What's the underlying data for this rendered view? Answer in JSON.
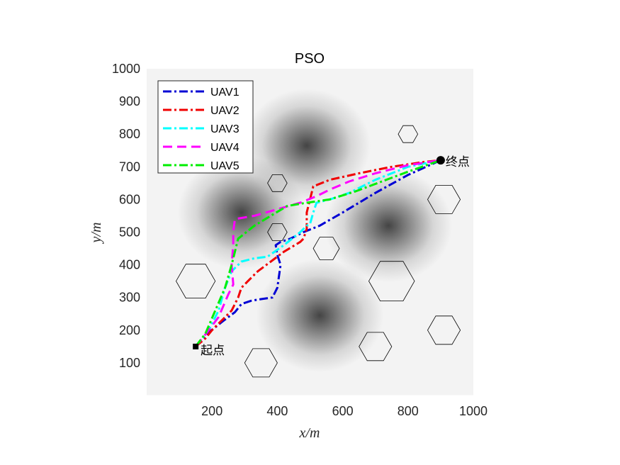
{
  "chart_data": {
    "type": "line",
    "title": "PSO",
    "xlabel": "x/m",
    "ylabel": "y/m",
    "xlim": [
      0,
      1000
    ],
    "ylim": [
      0,
      1000
    ],
    "x_ticks": [
      200,
      400,
      600,
      800,
      1000
    ],
    "y_ticks": [
      100,
      200,
      300,
      400,
      500,
      600,
      700,
      800,
      900,
      1000
    ],
    "grid": false,
    "legend_position": "top-left",
    "start": {
      "label": "起点",
      "x": 150,
      "y": 150
    },
    "end": {
      "label": "终点",
      "x": 900,
      "y": 720
    },
    "terrain_peaks": [
      {
        "x": 490,
        "y": 765
      },
      {
        "x": 530,
        "y": 245
      },
      {
        "x": 290,
        "y": 560
      },
      {
        "x": 740,
        "y": 520
      }
    ],
    "obstacles": [
      {
        "x": 800,
        "y": 800,
        "r": 30
      },
      {
        "x": 400,
        "y": 650,
        "r": 30
      },
      {
        "x": 910,
        "y": 600,
        "r": 50
      },
      {
        "x": 400,
        "y": 500,
        "r": 30
      },
      {
        "x": 550,
        "y": 450,
        "r": 40
      },
      {
        "x": 150,
        "y": 350,
        "r": 60
      },
      {
        "x": 750,
        "y": 350,
        "r": 70
      },
      {
        "x": 910,
        "y": 200,
        "r": 50
      },
      {
        "x": 700,
        "y": 150,
        "r": 50
      },
      {
        "x": 350,
        "y": 100,
        "r": 50
      }
    ],
    "series": [
      {
        "name": "UAV1",
        "color": "#0000d4",
        "dash": "dashdot",
        "x": [
          150,
          180,
          230,
          270,
          290,
          320,
          350,
          385,
          400,
          410,
          400,
          395,
          410,
          440,
          480,
          530,
          600,
          700,
          800,
          900
        ],
        "y": [
          150,
          185,
          225,
          255,
          280,
          290,
          295,
          300,
          330,
          400,
          430,
          460,
          470,
          480,
          500,
          520,
          560,
          620,
          675,
          720
        ]
      },
      {
        "name": "UAV2",
        "color": "#f00000",
        "dash": "dashdot",
        "x": [
          150,
          180,
          200,
          230,
          260,
          280,
          290,
          310,
          340,
          380,
          420,
          470,
          480,
          490,
          490,
          500,
          510,
          560,
          650,
          750,
          850,
          900
        ],
        "y": [
          150,
          175,
          200,
          230,
          260,
          300,
          330,
          350,
          380,
          410,
          440,
          470,
          480,
          510,
          560,
          600,
          640,
          660,
          680,
          700,
          715,
          720
        ]
      },
      {
        "name": "UAV3",
        "color": "#00ffff",
        "dash": "dashdot",
        "x": [
          150,
          190,
          220,
          240,
          260,
          290,
          330,
          370,
          420,
          470,
          490,
          500,
          510,
          520,
          560,
          620,
          700,
          800,
          900
        ],
        "y": [
          150,
          200,
          260,
          330,
          380,
          410,
          420,
          425,
          460,
          500,
          520,
          525,
          560,
          590,
          600,
          620,
          660,
          700,
          720
        ]
      },
      {
        "name": "UAV4",
        "color": "#ff00ff",
        "dash": "dash",
        "x": [
          150,
          190,
          220,
          250,
          265,
          260,
          265,
          265,
          270,
          330,
          400,
          470,
          520,
          560,
          620,
          700,
          800,
          900
        ],
        "y": [
          150,
          200,
          240,
          310,
          340,
          400,
          460,
          500,
          540,
          550,
          570,
          590,
          610,
          630,
          655,
          680,
          705,
          720
        ]
      },
      {
        "name": "UAV5",
        "color": "#00ee00",
        "dash": "dashdot",
        "x": [
          150,
          180,
          210,
          240,
          260,
          270,
          280,
          330,
          380,
          430,
          490,
          560,
          640,
          720,
          800,
          900
        ],
        "y": [
          150,
          190,
          260,
          330,
          400,
          440,
          480,
          520,
          550,
          580,
          590,
          600,
          625,
          655,
          685,
          720
        ]
      }
    ]
  }
}
